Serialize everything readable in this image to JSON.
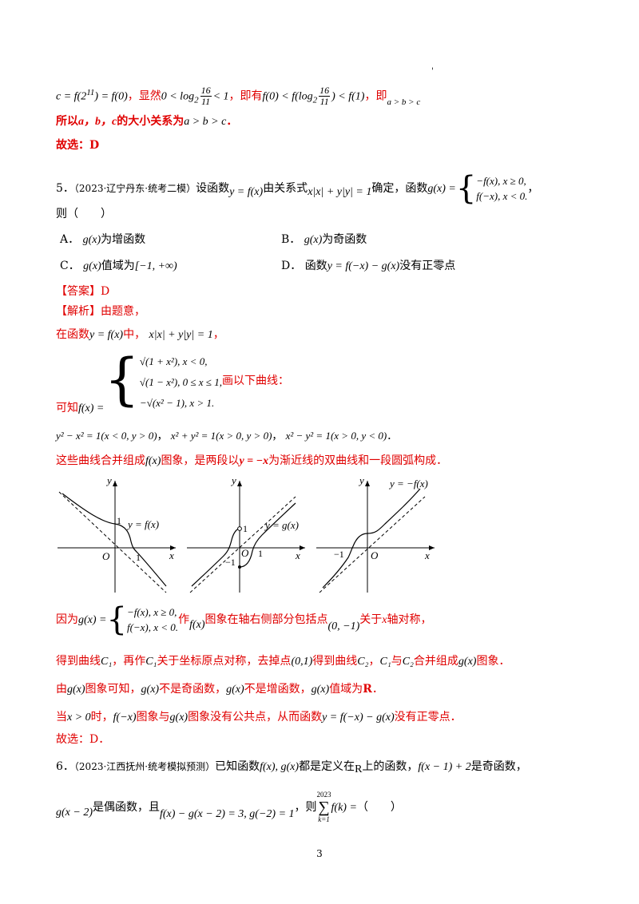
{
  "top": {
    "stray_mark": "'",
    "line1_a": "c = f(2",
    "line1_a_sup": "11",
    "line1_b": ") = f(0)",
    "line1_c": "，显然",
    "line1_d": "0 < log",
    "line1_d_sub": "2",
    "frac1_num": "16",
    "frac1_den": "11",
    "line1_e": "< 1",
    "line1_f": "，即有",
    "line1_g": "f(0) < f(log",
    "line1_g_sub": "2",
    "frac2_num": "16",
    "frac2_den": "11",
    "line1_h": ") < f(1)",
    "line1_i": "，即",
    "line1_j": "a > b > c",
    "line2_a": "所以",
    "line2_b": "a，b，c",
    "line2_c": "的大小关系为",
    "line2_d": "a > b > c",
    "line2_e": "．",
    "answer_pick": "故选：D"
  },
  "q5": {
    "prefix": "5．",
    "source": "（2023·辽宁丹东·统考二模）",
    "t1": "设函数",
    "m1": "y = f(x)",
    "t2": "由关系式",
    "m2": "x|x| + y|y| = 1",
    "t3": "确定，函数",
    "m3": "g(x) =",
    "case1": "−f(x), x ≥ 0,",
    "case2": "f(−x), x < 0.",
    "t4": "，",
    "stem_end": "则（　　）",
    "optA_label": "A．",
    "optA_m": "g(x)",
    "optA_t": "为增函数",
    "optB_label": "B．",
    "optB_m": "g(x)",
    "optB_t": "为奇函数",
    "optC_label": "C．",
    "optC_m": "g(x)",
    "optC_t": "值域为",
    "optC_m2": "[−1, +∞)",
    "optD_label": "D．",
    "optD_t1": "函数",
    "optD_m": "y = f(−x) − g(x)",
    "optD_t2": "没有正零点"
  },
  "solution": {
    "answer_tag": "【答案】D",
    "analysis_tag": "【解析】",
    "analysis_t": "由题意，",
    "l1_a": "在函数",
    "l1_m": "y = f(x)",
    "l1_b": "中，",
    "l1_m2": "x|x| + y|y| = 1",
    "l1_c": "，",
    "l2_a": "可知",
    "l2_m": "f(x) =",
    "l2_case1": "√(1 + x²), x < 0,",
    "l2_case2": "√(1 − x²), 0 ≤ x ≤ 1,",
    "l2_case3": "−√(x² − 1), x > 1.",
    "l2_b": "画以下曲线：",
    "l3_a": "y² − x² = 1(x < 0, y > 0)",
    "l3_b": "，",
    "l3_c": "x² + y² = 1(x > 0, y > 0)",
    "l3_d": "，",
    "l3_e": "x² − y² = 1(x > 0, y < 0)",
    "l3_f": "．",
    "l4_a": "这些曲线合并组成",
    "l4_m": "f(x)",
    "l4_b": "图象，是两段以",
    "l4_m2": "y = −x",
    "l4_c": "为渐近线的双曲线和一段圆弧构成．"
  },
  "graphs": {
    "g1_y": "y",
    "g1_x": "x",
    "g1_o": "O",
    "g1_one_y": "1",
    "g1_one_x": "1",
    "g1_label": "y = f(x)",
    "g2_y": "y",
    "g2_x": "x",
    "g2_o": "O",
    "g2_one_y": "1",
    "g2_one_x": "1",
    "g2_neg": "−1",
    "g2_label": "y = g(x)",
    "g3_y": "y",
    "g3_x": "x",
    "g3_o": "O",
    "g3_neg": "−1",
    "g3_label": "y = −f(x)"
  },
  "after": {
    "a1_a": "因为",
    "a1_m": "g(x) =",
    "a1_case1": "−f(x), x ≥ 0,",
    "a1_case2": "f(−x), x < 0.",
    "a1_b": "作",
    "a1_m2": "f(x)",
    "a1_c": "图象在轴右侧部分包括点",
    "a1_m3": "(0, −1)",
    "a1_d": "关于",
    "a1_m4": "x",
    "a1_e": "轴对称，",
    "a2_a": "得到曲线",
    "a2_m1": "C₁",
    "a2_b": "，再作",
    "a2_m2": "C₁",
    "a2_c": "关于坐标原点对称，去掉点",
    "a2_m3": "(0,1)",
    "a2_d": "得到曲线",
    "a2_m4": "C₂",
    "a2_e": "，",
    "a2_m5": "C₁",
    "a2_f": "与",
    "a2_m6": "C₂",
    "a2_g": "合并组成",
    "a2_m7": "g(x)",
    "a2_h": "图象．",
    "a3_a": "由",
    "a3_m1": "g(x)",
    "a3_b": "图象可知，",
    "a3_m2": "g(x)",
    "a3_c": "不是奇函数，",
    "a3_m3": "g(x)",
    "a3_d": "不是增函数，",
    "a3_m4": "g(x)",
    "a3_e": "值域为",
    "a3_f": "R",
    "a3_g": "．",
    "a4_a": "当",
    "a4_m1": "x > 0",
    "a4_b": "时，",
    "a4_m2": "f(−x)",
    "a4_c": "图象与",
    "a4_m3": "g(x)",
    "a4_d": "图象没有公共点，从而函数",
    "a4_m4": "y = f(−x) − g(x)",
    "a4_e": "没有正零点．",
    "a5": "故选：D．"
  },
  "q6": {
    "prefix": "6．",
    "source": "（2023·江西抚州·统考模拟预测）",
    "t1": "已知函数",
    "m1": "f(x), g(x)",
    "t2": "都是定义在",
    "m2": "R",
    "t3": "上的函数，",
    "m3": "f(x − 1) + 2",
    "t4": "是奇函数，",
    "l2_m1": "g(x − 2)",
    "l2_t1": "是偶函数，且",
    "l2_m2": "f(x) − g(x − 2) = 3, g(−2) = 1",
    "l2_t2": "，则",
    "sum_top": "2023",
    "sum_sym": "∑",
    "sum_bot": "k=1",
    "l2_m3": "f(k) =",
    "l2_t3": "（　　）"
  },
  "page_number": "3"
}
